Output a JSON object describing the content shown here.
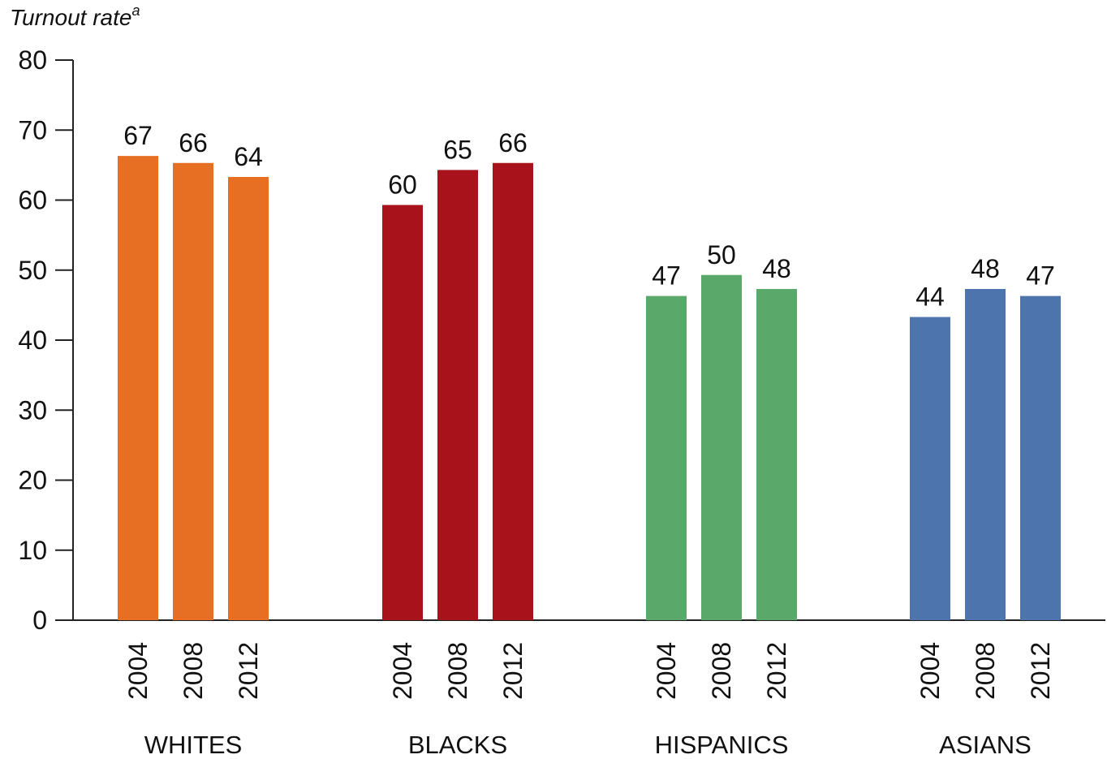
{
  "chart_data": {
    "type": "bar",
    "ylabel": "Turnout rate",
    "ylabel_superscript": "a",
    "ylim": [
      0,
      80
    ],
    "yticks": [
      0,
      10,
      20,
      30,
      40,
      50,
      60,
      70,
      80
    ],
    "grid": false,
    "legend": "none",
    "groups": [
      {
        "name": "WHITES",
        "color": "#e76f24",
        "categories": [
          "2004",
          "2008",
          "2012"
        ],
        "values": [
          67,
          66,
          64
        ]
      },
      {
        "name": "BLACKS",
        "color": "#a8131b",
        "categories": [
          "2004",
          "2008",
          "2012"
        ],
        "values": [
          60,
          65,
          66
        ]
      },
      {
        "name": "HISPANICS",
        "color": "#5aa96a",
        "categories": [
          "2004",
          "2008",
          "2012"
        ],
        "values": [
          47,
          50,
          48
        ]
      },
      {
        "name": "ASIANS",
        "color": "#4e74ad",
        "categories": [
          "2004",
          "2008",
          "2012"
        ],
        "values": [
          44,
          48,
          47
        ]
      }
    ]
  }
}
